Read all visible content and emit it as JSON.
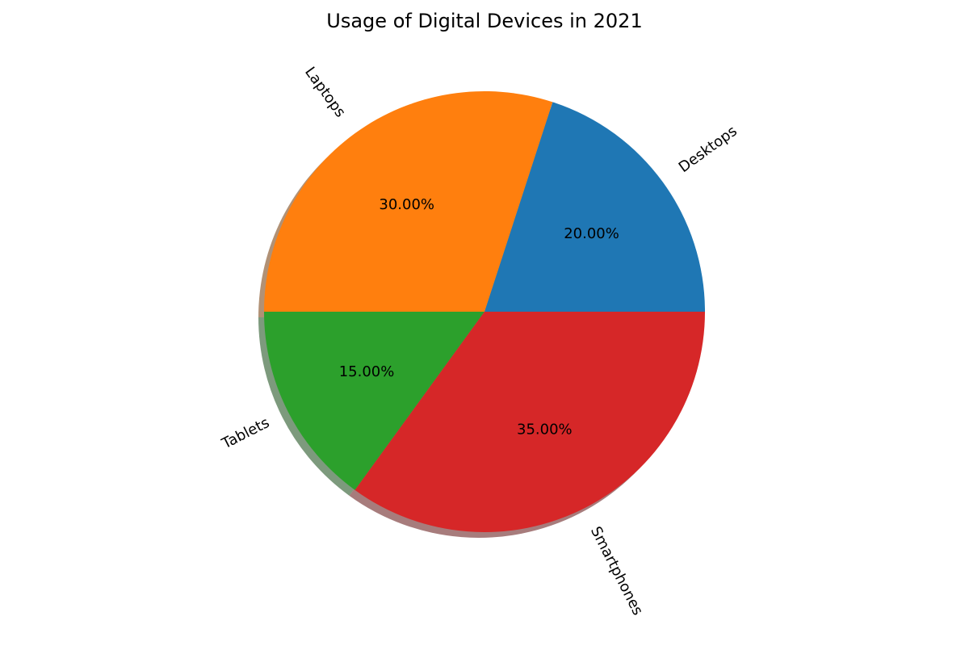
{
  "chart_data": {
    "type": "pie",
    "title": "Usage of Digital Devices in 2021",
    "categories": [
      "Desktops",
      "Laptops",
      "Tablets",
      "Smartphones"
    ],
    "values": [
      20,
      30,
      15,
      35
    ],
    "percent_labels": [
      "20.00%",
      "30.00%",
      "15.00%",
      "35.00%"
    ],
    "colors": [
      "#1f77b4",
      "#ff7f0e",
      "#2ca02c",
      "#d62728"
    ],
    "start_angle_deg": 0,
    "direction": "counterclockwise",
    "shadow": true,
    "legend": "none"
  }
}
